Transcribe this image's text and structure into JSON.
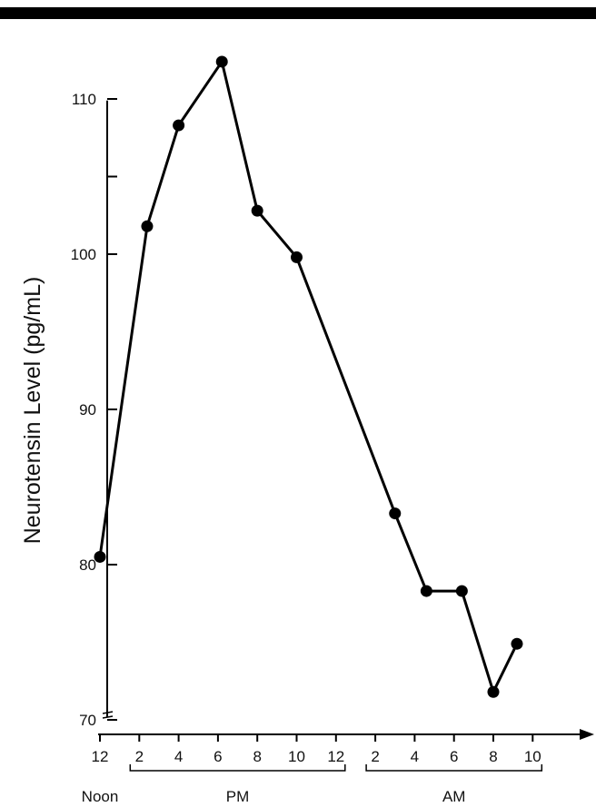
{
  "chart_data": {
    "type": "line",
    "title": "",
    "ylabel": "Neurotensin Level (pg/mL)",
    "xlabel": "",
    "ylim": [
      70,
      112
    ],
    "yticks": [
      {
        "value": 110,
        "label": "110"
      },
      {
        "value": 105,
        "label": ""
      },
      {
        "value": 100,
        "label": "100"
      },
      {
        "value": 90,
        "label": "90"
      },
      {
        "value": 80,
        "label": "80"
      },
      {
        "value": 70,
        "label": "70"
      }
    ],
    "y_axis_break": true,
    "xticks": [
      "12",
      "2",
      "4",
      "6",
      "8",
      "10",
      "12",
      "2",
      "4",
      "6",
      "8",
      "10"
    ],
    "x_groups": [
      {
        "label": "Noon",
        "from": 0,
        "to": 0,
        "bracket": false
      },
      {
        "label": "PM",
        "from": 1,
        "to": 6,
        "bracket": true
      },
      {
        "label": "AM",
        "from": 7,
        "to": 11,
        "bracket": true
      }
    ],
    "series": [
      {
        "x": [
          0,
          1.2,
          2,
          3.1,
          4,
          5,
          7.5,
          8.3,
          9.2,
          10,
          10.6
        ],
        "values": [
          80.5,
          101.8,
          108.3,
          112.4,
          102.8,
          99.8,
          83.3,
          78.3,
          78.3,
          71.8,
          74.9
        ]
      }
    ],
    "grid": false,
    "legend": "none",
    "line_color": "#000000",
    "header_bar_color": "#000000"
  }
}
